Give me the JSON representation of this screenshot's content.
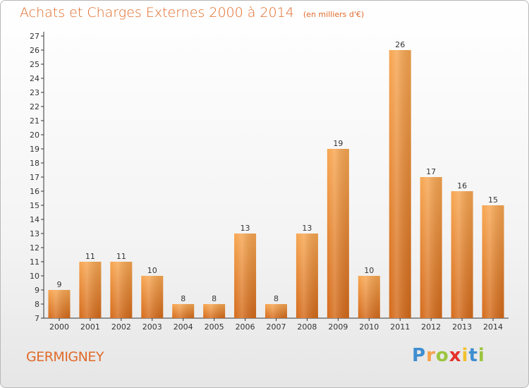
{
  "chart_data": {
    "type": "bar",
    "title": "Achats et Charges Externes 2000 à 2014",
    "unit_note": "(en milliers d'€)",
    "categories": [
      "2000",
      "2001",
      "2002",
      "2003",
      "2004",
      "2005",
      "2006",
      "2007",
      "2008",
      "2009",
      "2010",
      "2011",
      "2012",
      "2013",
      "2014"
    ],
    "values": [
      9,
      11,
      11,
      10,
      8,
      8,
      13,
      8,
      13,
      19,
      10,
      26,
      17,
      16,
      15
    ],
    "ylim": [
      7,
      27
    ],
    "yticks": [
      7,
      8,
      9,
      10,
      11,
      12,
      13,
      14,
      15,
      16,
      17,
      18,
      19,
      20,
      21,
      22,
      23,
      24,
      25,
      26,
      27
    ],
    "grid": false,
    "bar_color_top": "#f7a651",
    "bar_color_bottom": "#d46a1a"
  },
  "footer": {
    "commune": "GERMIGNEY",
    "logo_letters": [
      "P",
      "r",
      "o",
      "x",
      "i",
      "t",
      "i"
    ],
    "logo_colors": [
      "#3e8ed0",
      "#f7a14a",
      "#9bc53d",
      "#e4322b",
      "#f2c12e",
      "#3e8ed0",
      "#9bc53d"
    ]
  }
}
